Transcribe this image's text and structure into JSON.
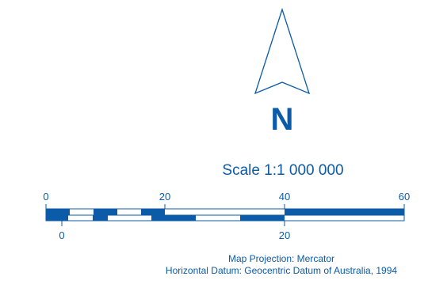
{
  "north_arrow": {
    "letter": "N"
  },
  "scale": {
    "title": "Scale 1:1 000 000",
    "top_ticks": [
      "0",
      "20",
      "40",
      "60"
    ],
    "bottom_ticks": [
      "0",
      "20"
    ]
  },
  "projection_info": {
    "line1": "Map Projection: Mercator",
    "line2": "Horizontal Datum: Geocentric Datum of Australia, 1994"
  },
  "colors": {
    "primary": "#0b5ba8",
    "background": "#ffffff"
  }
}
